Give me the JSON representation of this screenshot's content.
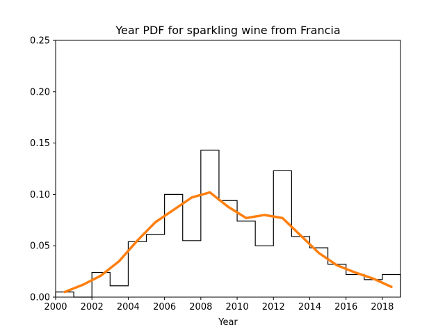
{
  "chart_data": {
    "type": "histogram",
    "title": "Year PDF for sparkling wine from Francia",
    "xlabel": "Year",
    "ylabel": "",
    "xlim": [
      2000,
      2019
    ],
    "ylim": [
      0,
      0.25
    ],
    "x_ticks": [
      2000,
      2002,
      2004,
      2006,
      2008,
      2010,
      2012,
      2014,
      2016,
      2018
    ],
    "y_ticks": [
      "0.00",
      "0.05",
      "0.10",
      "0.15",
      "0.20",
      "0.25"
    ],
    "bins": {
      "edges": [
        2000,
        2001,
        2002,
        2003,
        2004,
        2005,
        2006,
        2007,
        2008,
        2009,
        2010,
        2011,
        2012,
        2013,
        2014,
        2015,
        2016,
        2017,
        2018,
        2019
      ],
      "density": [
        0.005,
        0.0,
        0.024,
        0.011,
        0.054,
        0.061,
        0.1,
        0.055,
        0.143,
        0.094,
        0.074,
        0.05,
        0.123,
        0.059,
        0.048,
        0.032,
        0.022,
        0.017,
        0.022
      ]
    },
    "kde": {
      "color": "#ff7f0e",
      "x": [
        2000.5,
        2001.5,
        2002.5,
        2003.5,
        2004.5,
        2005.5,
        2006.5,
        2007.5,
        2008.5,
        2009.5,
        2010.5,
        2011.5,
        2012.5,
        2013.5,
        2014.5,
        2015.5,
        2016.5,
        2017.5,
        2018.5
      ],
      "y": [
        0.005,
        0.012,
        0.021,
        0.035,
        0.055,
        0.073,
        0.085,
        0.097,
        0.102,
        0.088,
        0.077,
        0.08,
        0.077,
        0.06,
        0.043,
        0.031,
        0.024,
        0.018,
        0.01
      ]
    },
    "hist_color": "#000000",
    "grid": false
  }
}
